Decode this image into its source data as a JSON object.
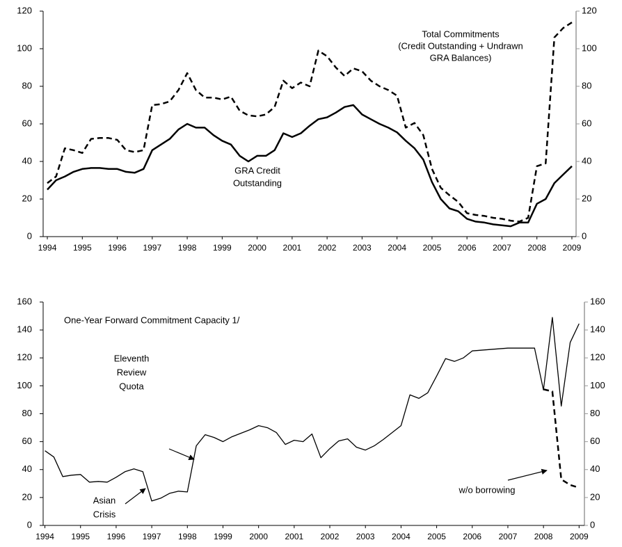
{
  "chart_data": [
    {
      "type": "line",
      "x": [
        1994,
        1994.25,
        1994.5,
        1994.75,
        1995,
        1995.25,
        1995.5,
        1995.75,
        1996,
        1996.25,
        1996.5,
        1996.75,
        1997,
        1997.25,
        1997.5,
        1997.75,
        1998,
        1998.25,
        1998.5,
        1998.75,
        1999,
        1999.25,
        1999.5,
        1999.75,
        2000,
        2000.25,
        2000.5,
        2000.75,
        2001,
        2001.25,
        2001.5,
        2001.75,
        2002,
        2002.25,
        2002.5,
        2002.75,
        2003,
        2003.25,
        2003.5,
        2003.75,
        2004,
        2004.25,
        2004.5,
        2004.75,
        2005,
        2005.25,
        2005.5,
        2005.75,
        2006,
        2006.25,
        2006.5,
        2006.75,
        2007,
        2007.25,
        2007.5,
        2007.75,
        2008,
        2008.25,
        2008.5,
        2008.75,
        2009
      ],
      "series": [
        {
          "name": [
            "GRA Credit",
            "Outstanding"
          ],
          "color": "#000000",
          "line_style": "solid",
          "values": [
            25,
            30,
            32,
            34.5,
            36,
            36.5,
            36.5,
            36,
            36,
            34.5,
            34,
            36,
            46,
            49,
            52,
            57,
            60,
            58,
            58,
            54,
            51,
            49,
            43,
            40,
            43,
            43,
            46,
            55,
            53,
            55,
            59,
            62.5,
            63.5,
            66,
            69,
            70,
            65,
            62.5,
            60,
            58,
            55.5,
            51,
            47,
            41,
            29,
            20,
            15,
            13.5,
            9.5,
            8,
            7.5,
            6.5,
            6,
            5.5,
            7.5,
            7.5,
            17.5,
            20,
            28.5,
            33,
            37.5
          ]
        },
        {
          "name": [
            "Total Commitments",
            "(Credit Outstanding + Undrawn",
            "GRA Balances)"
          ],
          "color": "#000000",
          "line_style": "dashed",
          "values": [
            28.5,
            32,
            47,
            46,
            44.5,
            52,
            52.5,
            52.5,
            51.5,
            46,
            45,
            46,
            70,
            70.5,
            72,
            78,
            87,
            78,
            74,
            74,
            73,
            74.5,
            67,
            64.5,
            64,
            65,
            69,
            83,
            79,
            82,
            80,
            99,
            96,
            90,
            85.5,
            89.5,
            88,
            83,
            80,
            78,
            75,
            58,
            60.5,
            54,
            36,
            26,
            22,
            18.5,
            12.5,
            11.5,
            11,
            10,
            9.5,
            8.5,
            8,
            10,
            37.5,
            39,
            106,
            111,
            114
          ]
        }
      ],
      "xlim": [
        1993.88,
        2009.12
      ],
      "xticks": [
        1994,
        1995,
        1996,
        1997,
        1998,
        1999,
        2000,
        2001,
        2002,
        2003,
        2004,
        2005,
        2006,
        2007,
        2008,
        2009
      ],
      "ylim": [
        0,
        120
      ],
      "yticks": [
        0,
        20,
        40,
        60,
        80,
        100,
        120
      ],
      "y2lim": [
        0,
        120
      ],
      "y2ticks": [
        0,
        20,
        40,
        60,
        80,
        100,
        120
      ]
    },
    {
      "type": "line",
      "title": "One-Year Forward Commitment Capacity  1/",
      "x": [
        1994,
        1994.25,
        1994.5,
        1994.75,
        1995,
        1995.25,
        1995.5,
        1995.75,
        1996,
        1996.25,
        1996.5,
        1996.75,
        1997,
        1997.25,
        1997.5,
        1997.75,
        1998,
        1998.25,
        1998.5,
        1998.75,
        1999,
        1999.25,
        1999.5,
        1999.75,
        2000,
        2000.25,
        2000.5,
        2000.75,
        2001,
        2001.25,
        2001.5,
        2001.75,
        2002,
        2002.25,
        2002.5,
        2002.75,
        2003,
        2003.25,
        2003.5,
        2003.75,
        2004,
        2004.25,
        2004.5,
        2004.75,
        2005,
        2005.25,
        2005.5,
        2005.75,
        2006,
        2006.25,
        2006.5,
        2006.75,
        2007,
        2007.25,
        2007.5,
        2007.75,
        2008,
        2008.25,
        2008.5,
        2008.75,
        2009
      ],
      "series": [
        {
          "color": "#000000",
          "line_style": "solid",
          "values": [
            53.5,
            49,
            35,
            36,
            36.5,
            31,
            31.5,
            31,
            34.5,
            38.5,
            40.5,
            38.5,
            17.5,
            19.5,
            23,
            24.5,
            24,
            57,
            65,
            63,
            60,
            63.5,
            66,
            68.5,
            71.5,
            70,
            66.5,
            58,
            61,
            60,
            65.5,
            48.5,
            55,
            60.5,
            62,
            56,
            54,
            57,
            61.5,
            66.5,
            71.5,
            93.5,
            91,
            95,
            107,
            119.5,
            117.5,
            120,
            125,
            125.5,
            126,
            126.5,
            127,
            127,
            127,
            127,
            97,
            149,
            85.5,
            131,
            144.5
          ]
        },
        {
          "name": [
            "w/o borrowing"
          ],
          "color": "#000000",
          "line_style": "dashed",
          "values": [
            null,
            null,
            null,
            null,
            null,
            null,
            null,
            null,
            null,
            null,
            null,
            null,
            null,
            null,
            null,
            null,
            null,
            null,
            null,
            null,
            null,
            null,
            null,
            null,
            null,
            null,
            null,
            null,
            null,
            null,
            null,
            null,
            null,
            null,
            null,
            null,
            null,
            null,
            null,
            null,
            null,
            null,
            null,
            null,
            null,
            null,
            null,
            null,
            null,
            null,
            null,
            null,
            null,
            null,
            null,
            null,
            97.5,
            96,
            33,
            29,
            27
          ]
        }
      ],
      "annotations": [
        {
          "lines": [
            "Eleventh",
            "Review",
            "Quota"
          ]
        },
        {
          "lines": [
            "Asian",
            "Crisis"
          ]
        }
      ],
      "xlim": [
        1993.95,
        2009.15
      ],
      "xticks": [
        1994,
        1995,
        1996,
        1997,
        1998,
        1999,
        2000,
        2001,
        2002,
        2003,
        2004,
        2005,
        2006,
        2007,
        2008,
        2009
      ],
      "ylim": [
        0,
        160
      ],
      "yticks": [
        0,
        20,
        40,
        60,
        80,
        100,
        120,
        140,
        160
      ],
      "y2lim": [
        0,
        160
      ],
      "y2ticks": [
        0,
        20,
        40,
        60,
        80,
        100,
        120,
        140,
        160
      ]
    }
  ]
}
